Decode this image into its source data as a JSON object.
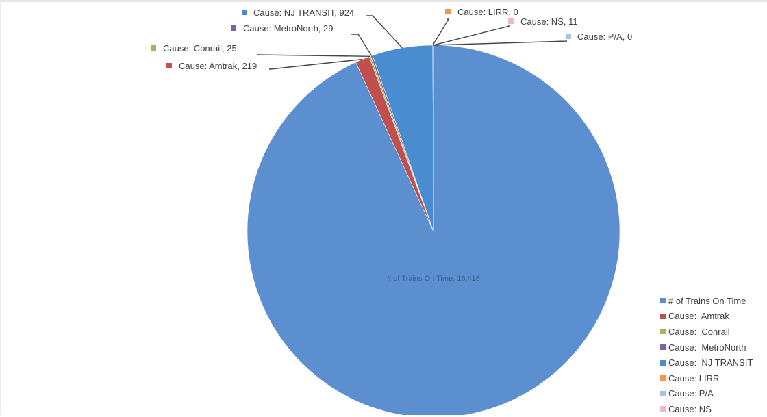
{
  "chart_data": {
    "type": "pie",
    "title": "",
    "start_angle_deg": 0,
    "direction": "clockwise",
    "slices": [
      {
        "label": "# of Trains On Time",
        "value": 16416,
        "value_text": "16,416",
        "color": "#5b8fd0",
        "data_label": "# of Trains On Time, 16,416",
        "label_style": "inside"
      },
      {
        "label": "Cause:  Amtrak",
        "value": 219,
        "color": "#c0504d",
        "data_label": "Cause:  Amtrak, 219"
      },
      {
        "label": "Cause:  Conrail",
        "value": 25,
        "color": "#9bbb59",
        "data_label": "Cause:  Conrail, 25"
      },
      {
        "label": "Cause:  MetroNorth",
        "value": 29,
        "color": "#8064a2",
        "data_label": "Cause:  MetroNorth, 29"
      },
      {
        "label": "Cause:  NJ TRANSIT",
        "value": 924,
        "color": "#4a8cd0",
        "data_label": "Cause:  NJ TRANSIT, 924"
      },
      {
        "label": "Cause: LIRR",
        "value": 0,
        "color": "#f79646",
        "data_label": "Cause: LIRR, 0"
      },
      {
        "label": "Cause: P/A",
        "value": 0,
        "color": "#a9c0ea",
        "data_label": "Cause: P/A, 0"
      },
      {
        "label": "Cause: NS",
        "value": 11,
        "color": "#f2b8c6",
        "data_label": "Cause: NS, 11"
      }
    ],
    "legend_position": "right-bottom",
    "legend_entries": [
      {
        "label": "# of Trains On Time",
        "color": "#5b8fd0"
      },
      {
        "label": "Cause:  Amtrak",
        "color": "#c0504d"
      },
      {
        "label": "Cause:  Conrail",
        "color": "#9bbb59"
      },
      {
        "label": "Cause:  MetroNorth",
        "color": "#8064a2"
      },
      {
        "label": "Cause:  NJ TRANSIT",
        "color": "#4a8cd0"
      },
      {
        "label": "Cause: LIRR",
        "color": "#f79646"
      },
      {
        "label": "Cause: P/A",
        "color": "#a9c0ea"
      },
      {
        "label": "Cause: NS",
        "color": "#f2b8c6"
      }
    ]
  }
}
